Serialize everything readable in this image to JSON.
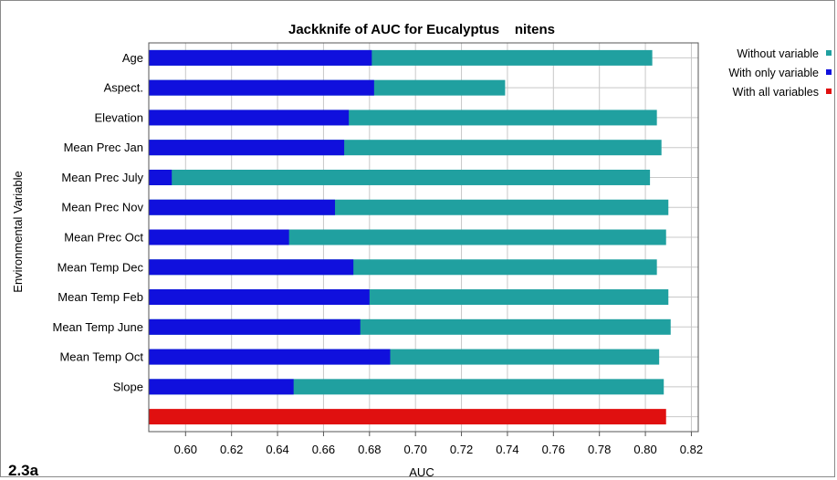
{
  "figure_label": "2.3a",
  "chart_data": {
    "type": "bar",
    "orientation": "horizontal",
    "title": "Jackknife of AUC for Eucalyptus    nitens",
    "xlabel": "AUC",
    "ylabel": "Environmental Variable",
    "xlim": [
      0.584,
      0.823
    ],
    "xticks": [
      0.6,
      0.62,
      0.64,
      0.66,
      0.68,
      0.7,
      0.72,
      0.74,
      0.76,
      0.78,
      0.8,
      0.82
    ],
    "xtick_labels": [
      "0.60",
      "0.62",
      "0.64",
      "0.66",
      "0.68",
      "0.70",
      "0.72",
      "0.74",
      "0.76",
      "0.78",
      "0.80",
      "0.82"
    ],
    "grid": true,
    "legend_position": "right",
    "categories": [
      "Age",
      "Aspect.",
      "Elevation",
      "Mean Prec Jan",
      "Mean Prec July",
      "Mean Prec Nov",
      "Mean Prec Oct",
      "Mean Temp Dec",
      "Mean Temp Feb",
      "Mean Temp June",
      "Mean Temp Oct",
      "Slope"
    ],
    "series": [
      {
        "name": "Without variable",
        "color": "#20a0a0",
        "values": [
          0.803,
          0.739,
          0.805,
          0.807,
          0.802,
          0.81,
          0.809,
          0.805,
          0.81,
          0.811,
          0.806,
          0.808
        ]
      },
      {
        "name": "With only variable",
        "color": "#1010dd",
        "values": [
          0.681,
          0.682,
          0.671,
          0.669,
          0.594,
          0.665,
          0.645,
          0.673,
          0.68,
          0.676,
          0.689,
          0.647
        ]
      },
      {
        "name": "With all variables",
        "color": "#e01010",
        "value": 0.809
      }
    ]
  }
}
